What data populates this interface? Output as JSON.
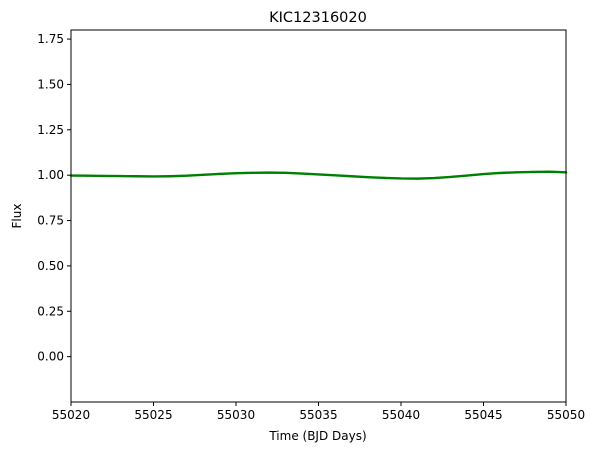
{
  "chart_data": {
    "type": "line",
    "title": "KIC12316020",
    "xlabel": "Time (BJD Days)",
    "ylabel": "Flux",
    "xlim": [
      55020,
      55050
    ],
    "ylim": [
      -0.25,
      1.8
    ],
    "xticks": [
      55020,
      55025,
      55030,
      55035,
      55040,
      55045,
      55050
    ],
    "xtick_labels": [
      "55020",
      "55025",
      "55030",
      "55035",
      "55040",
      "55045",
      "55050"
    ],
    "yticks": [
      0.0,
      0.25,
      0.5,
      0.75,
      1.0,
      1.25,
      1.5,
      1.75
    ],
    "ytick_labels": [
      "0.00",
      "0.25",
      "0.50",
      "0.75",
      "1.00",
      "1.25",
      "1.50",
      "1.75"
    ],
    "grid": false,
    "legend": "none",
    "series": [
      {
        "color": "#008000",
        "x": [
          55020,
          55021,
          55022,
          55023,
          55024,
          55025,
          55026,
          55027,
          55028,
          55029,
          55030,
          55031,
          55032,
          55033,
          55034,
          55035,
          55036,
          55037,
          55038,
          55039,
          55040,
          55041,
          55042,
          55043,
          55044,
          55045,
          55046,
          55047,
          55048,
          55049,
          55050
        ],
        "y": [
          0.998,
          0.997,
          0.996,
          0.995,
          0.994,
          0.993,
          0.994,
          0.997,
          1.002,
          1.007,
          1.011,
          1.013,
          1.014,
          1.013,
          1.009,
          1.004,
          0.999,
          0.994,
          0.989,
          0.985,
          0.982,
          0.981,
          0.984,
          0.99,
          0.998,
          1.006,
          1.012,
          1.016,
          1.018,
          1.019,
          1.016
        ]
      }
    ]
  }
}
